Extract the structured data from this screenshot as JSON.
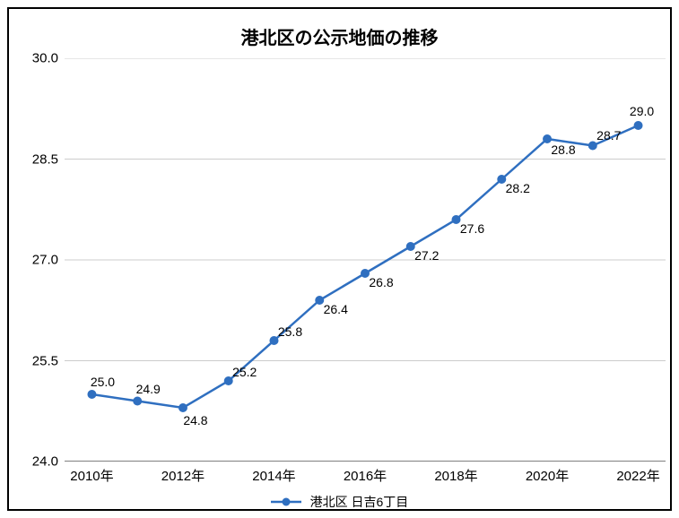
{
  "chart": {
    "type": "line",
    "title": "港北区の公示地価の推移",
    "title_fontsize": 20,
    "background_color": "#ffffff",
    "border_color": "#000000",
    "grid_color": "#cccccc",
    "axis_color": "#333333",
    "tick_fontsize": 15,
    "label_fontsize": 14,
    "xlabel_suffix": "年",
    "x": {
      "min": 2009.4,
      "max": 2022.6,
      "ticks": [
        2010,
        2012,
        2014,
        2016,
        2018,
        2020,
        2022
      ],
      "tick_labels": [
        "2010年",
        "2012年",
        "2014年",
        "2016年",
        "2018年",
        "2020年",
        "2022年"
      ],
      "minor_ticks": true
    },
    "y": {
      "min": 24.0,
      "max": 30.0,
      "ticks": [
        24.0,
        25.5,
        27.0,
        28.5,
        30.0
      ],
      "tick_labels": [
        "24.0",
        "25.5",
        "27.0",
        "28.5",
        "30.0"
      ],
      "grid": true
    },
    "series": [
      {
        "name": "港北区 日吉6丁目",
        "color": "#2f6fc0",
        "line_width": 2.5,
        "marker": "circle",
        "marker_size": 5,
        "marker_fill": "#2f6fc0",
        "x": [
          2010,
          2011,
          2012,
          2013,
          2014,
          2015,
          2016,
          2017,
          2018,
          2019,
          2020,
          2021,
          2022
        ],
        "y": [
          25.0,
          24.9,
          24.8,
          25.2,
          25.8,
          26.4,
          26.8,
          27.2,
          27.6,
          28.2,
          28.8,
          28.7,
          29.0
        ],
        "data_labels": [
          "25.0",
          "24.9",
          "24.8",
          "25.2",
          "25.8",
          "26.4",
          "26.8",
          "27.2",
          "27.6",
          "28.2",
          "28.8",
          "28.7",
          "29.0"
        ],
        "label_offsets": [
          {
            "dx": 12,
            "dy": -14
          },
          {
            "dx": 12,
            "dy": -14
          },
          {
            "dx": 14,
            "dy": 14
          },
          {
            "dx": 18,
            "dy": -10
          },
          {
            "dx": 18,
            "dy": -10
          },
          {
            "dx": 18,
            "dy": 10
          },
          {
            "dx": 18,
            "dy": 10
          },
          {
            "dx": 18,
            "dy": 10
          },
          {
            "dx": 18,
            "dy": 10
          },
          {
            "dx": 18,
            "dy": 10
          },
          {
            "dx": 18,
            "dy": 12
          },
          {
            "dx": 18,
            "dy": -12
          },
          {
            "dx": 4,
            "dy": -16
          }
        ]
      }
    ],
    "legend": {
      "position": "bottom",
      "fontsize": 14
    }
  }
}
